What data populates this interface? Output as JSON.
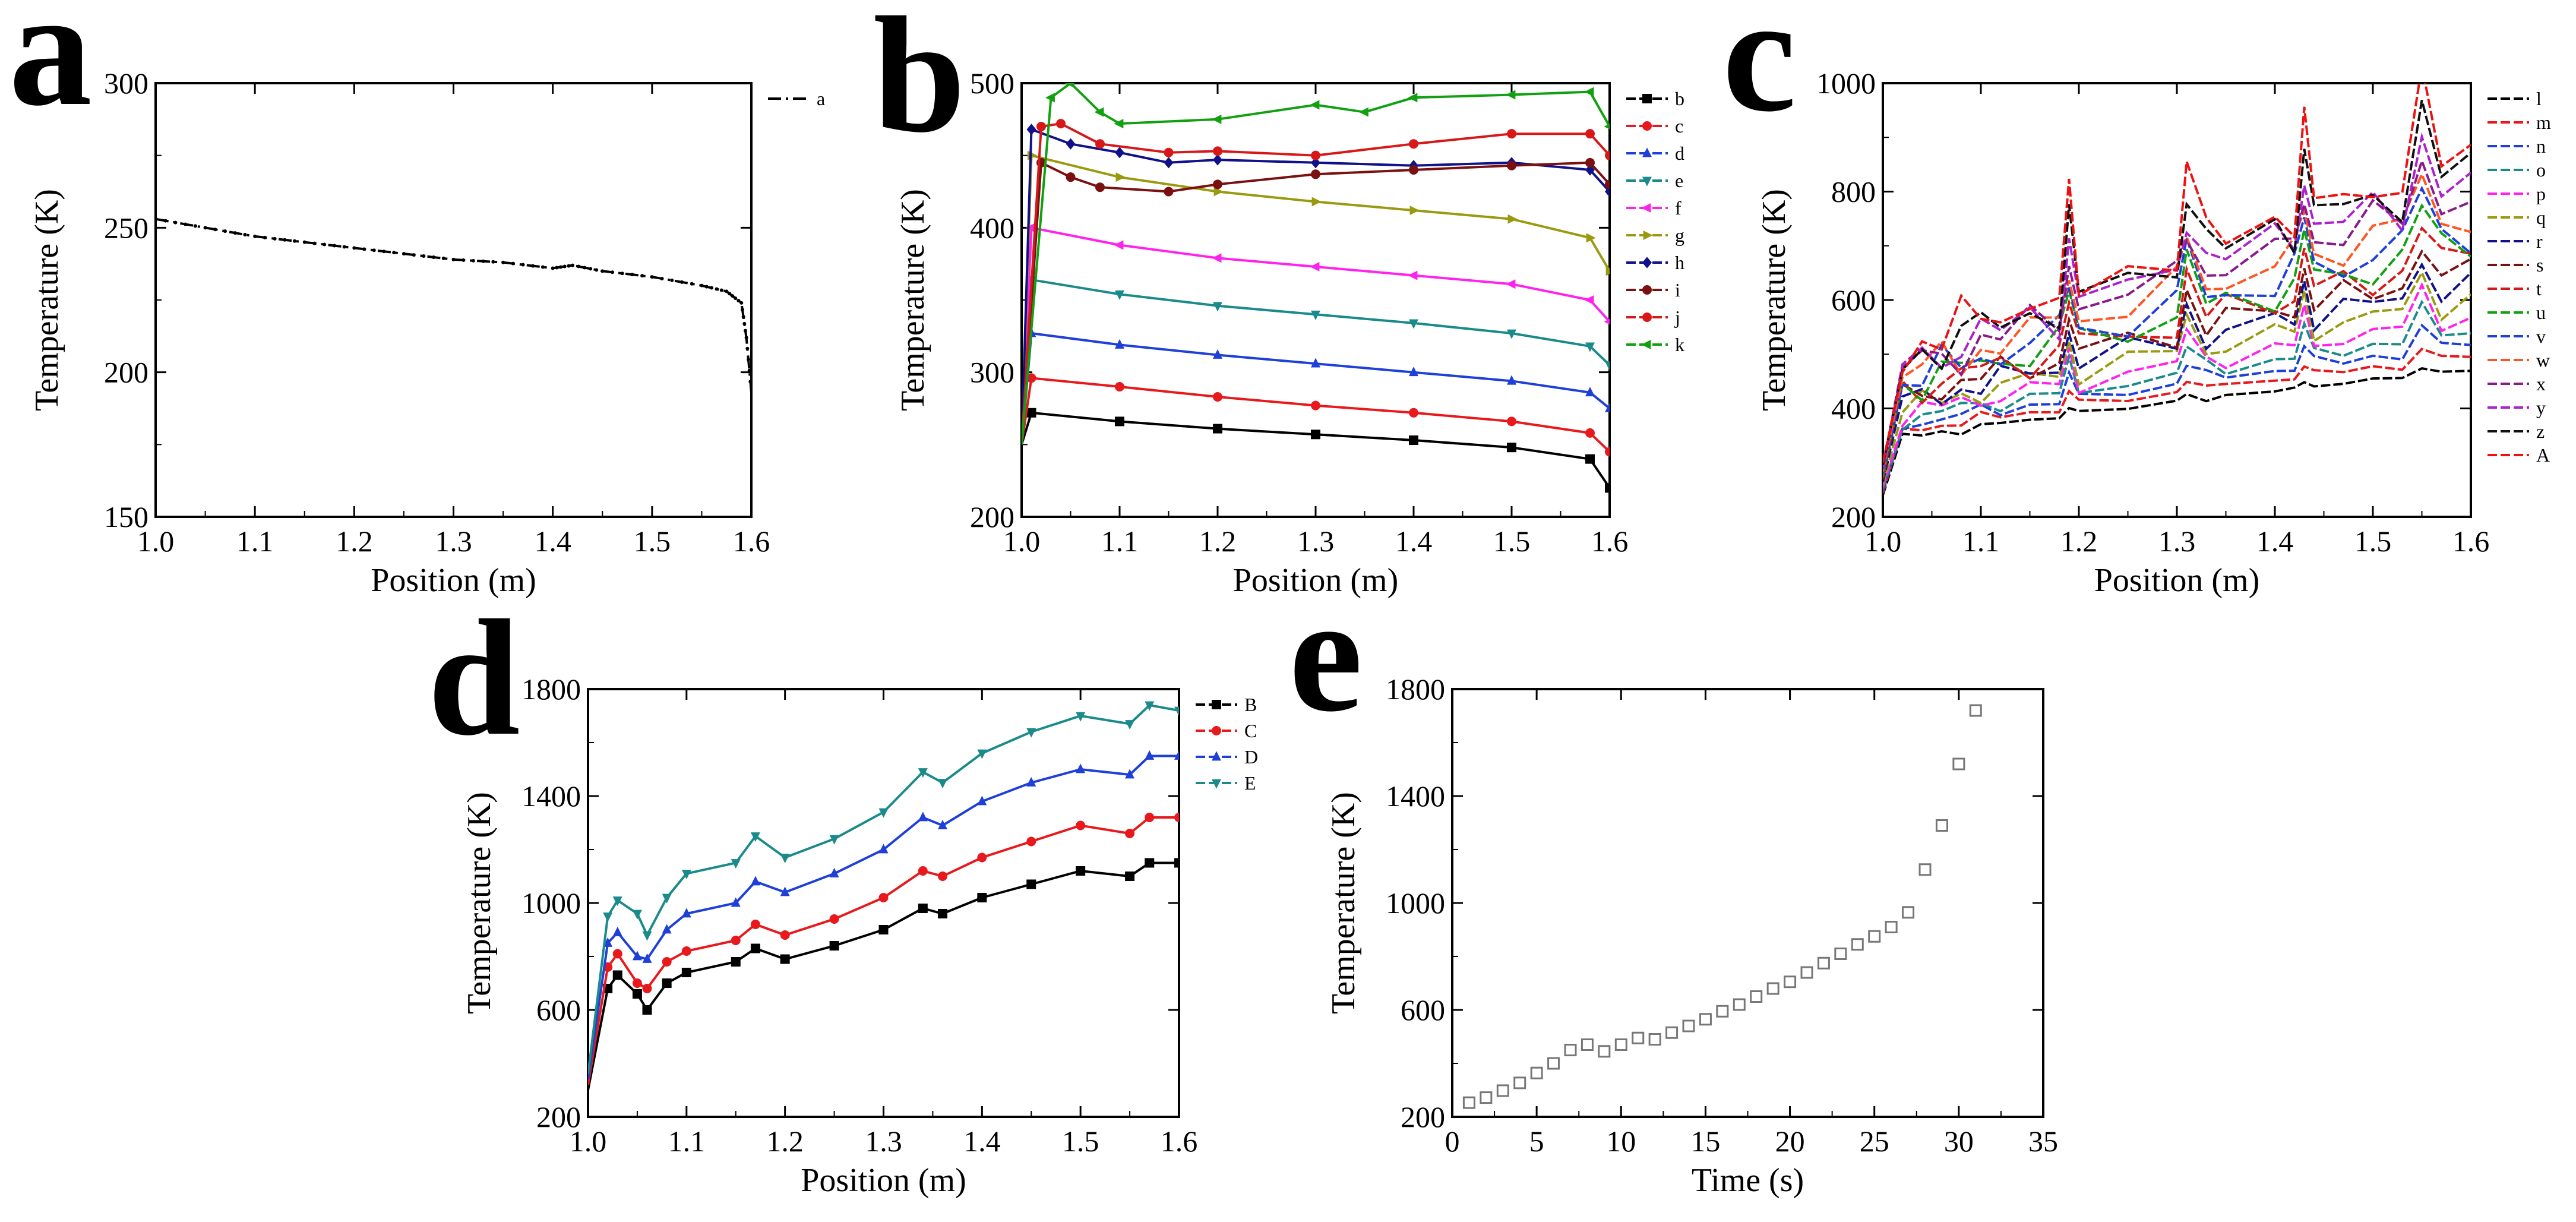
{
  "chart_data": [
    {
      "panel": "a",
      "type": "line",
      "xlabel": "Position (m)",
      "ylabel": "Temperature (K)",
      "xlim": [
        1.0,
        1.6
      ],
      "ylim": [
        150,
        300
      ],
      "xticks": [
        "1.0",
        "1.1",
        "1.2",
        "1.3",
        "1.4",
        "1.5",
        "1.6"
      ],
      "yticks": [
        "150",
        "200",
        "250",
        "300"
      ],
      "legend": "top-right",
      "series": [
        {
          "name": "a",
          "color": "#000000",
          "dash": "dashdot",
          "marker": "dot",
          "x": [
            1.0,
            1.05,
            1.1,
            1.15,
            1.2,
            1.25,
            1.3,
            1.35,
            1.4,
            1.42,
            1.45,
            1.5,
            1.55,
            1.575,
            1.59,
            1.595,
            1.6
          ],
          "y": [
            253,
            250,
            247,
            245,
            243,
            241,
            239,
            238,
            236,
            237,
            235,
            233,
            230,
            228,
            224,
            212,
            193
          ]
        }
      ]
    },
    {
      "panel": "b",
      "type": "line",
      "xlabel": "Position (m)",
      "ylabel": "Temperature (K)",
      "xlim": [
        1.0,
        1.6
      ],
      "ylim": [
        200,
        500
      ],
      "xticks": [
        "1.0",
        "1.1",
        "1.2",
        "1.3",
        "1.4",
        "1.5",
        "1.6"
      ],
      "yticks": [
        "200",
        "300",
        "400",
        "500"
      ],
      "legend": "top-right",
      "series": [
        {
          "name": "b",
          "color": "#000000",
          "marker": "square",
          "x": [
            1.0,
            1.01,
            1.1,
            1.2,
            1.3,
            1.4,
            1.5,
            1.58,
            1.6
          ],
          "y": [
            250,
            272,
            266,
            261,
            257,
            253,
            248,
            240,
            220
          ]
        },
        {
          "name": "c",
          "color": "#e8191c",
          "marker": "circle",
          "x": [
            1.0,
            1.01,
            1.1,
            1.2,
            1.3,
            1.4,
            1.5,
            1.58,
            1.6
          ],
          "y": [
            250,
            296,
            290,
            283,
            277,
            272,
            266,
            258,
            245
          ]
        },
        {
          "name": "d",
          "color": "#1e3fd8",
          "marker": "triangle",
          "x": [
            1.0,
            1.01,
            1.1,
            1.2,
            1.3,
            1.4,
            1.5,
            1.58,
            1.6
          ],
          "y": [
            250,
            327,
            319,
            312,
            306,
            300,
            294,
            286,
            275
          ]
        },
        {
          "name": "e",
          "color": "#1a8a8a",
          "marker": "triangle-down",
          "x": [
            1.0,
            1.01,
            1.1,
            1.2,
            1.3,
            1.4,
            1.5,
            1.58,
            1.6
          ],
          "y": [
            250,
            364,
            354,
            346,
            340,
            334,
            327,
            318,
            305
          ]
        },
        {
          "name": "f",
          "color": "#ff22ee",
          "marker": "triangle-left",
          "x": [
            1.0,
            1.01,
            1.1,
            1.2,
            1.3,
            1.4,
            1.5,
            1.58,
            1.6
          ],
          "y": [
            250,
            400,
            388,
            379,
            373,
            367,
            361,
            350,
            335
          ]
        },
        {
          "name": "g",
          "color": "#9a9a10",
          "marker": "triangle-right",
          "x": [
            1.0,
            1.01,
            1.1,
            1.2,
            1.3,
            1.4,
            1.5,
            1.58,
            1.6
          ],
          "y": [
            250,
            450,
            435,
            425,
            418,
            412,
            406,
            393,
            370
          ]
        },
        {
          "name": "h",
          "color": "#10108a",
          "marker": "diamond",
          "x": [
            1.0,
            1.01,
            1.05,
            1.1,
            1.15,
            1.2,
            1.3,
            1.4,
            1.5,
            1.58,
            1.6
          ],
          "y": [
            250,
            468,
            458,
            452,
            445,
            447,
            445,
            443,
            445,
            440,
            425
          ]
        },
        {
          "name": "i",
          "color": "#7a1010",
          "marker": "hexagon",
          "x": [
            1.0,
            1.02,
            1.05,
            1.08,
            1.15,
            1.2,
            1.3,
            1.4,
            1.5,
            1.58,
            1.6
          ],
          "y": [
            250,
            445,
            435,
            428,
            425,
            430,
            437,
            440,
            443,
            445,
            430
          ]
        },
        {
          "name": "j",
          "color": "#d81818",
          "marker": "circle",
          "x": [
            1.0,
            1.02,
            1.04,
            1.08,
            1.15,
            1.2,
            1.3,
            1.4,
            1.5,
            1.58,
            1.6
          ],
          "y": [
            250,
            470,
            472,
            458,
            452,
            453,
            450,
            458,
            465,
            465,
            450
          ]
        },
        {
          "name": "k",
          "color": "#10a010",
          "marker": "triangle-left",
          "x": [
            1.0,
            1.03,
            1.05,
            1.08,
            1.1,
            1.2,
            1.3,
            1.35,
            1.4,
            1.5,
            1.58,
            1.6
          ],
          "y": [
            250,
            490,
            500,
            480,
            472,
            475,
            485,
            480,
            490,
            492,
            494,
            470
          ]
        }
      ]
    },
    {
      "panel": "c",
      "type": "line",
      "xlabel": "Position (m)",
      "ylabel": "Temperature (K)",
      "xlim": [
        1.0,
        1.6
      ],
      "ylim": [
        200,
        1000
      ],
      "xticks": [
        "1.0",
        "1.1",
        "1.2",
        "1.3",
        "1.4",
        "1.5",
        "1.6"
      ],
      "yticks": [
        "200",
        "400",
        "600",
        "800",
        "1000"
      ],
      "legend": "right",
      "x": [
        1.0,
        1.02,
        1.04,
        1.06,
        1.08,
        1.1,
        1.12,
        1.15,
        1.18,
        1.19,
        1.2,
        1.25,
        1.3,
        1.31,
        1.33,
        1.35,
        1.4,
        1.42,
        1.43,
        1.44,
        1.47,
        1.5,
        1.53,
        1.55,
        1.57,
        1.6
      ],
      "series": [
        {
          "name": "l",
          "color": "#000000",
          "base": 340,
          "top": 470
        },
        {
          "name": "m",
          "color": "#e8191c",
          "base": 352,
          "top": 495
        },
        {
          "name": "n",
          "color": "#1e3fd8",
          "base": 362,
          "top": 520
        },
        {
          "name": "o",
          "color": "#1a8a8a",
          "base": 372,
          "top": 545
        },
        {
          "name": "p",
          "color": "#ff22ee",
          "base": 380,
          "top": 570
        },
        {
          "name": "q",
          "color": "#9a9a10",
          "base": 390,
          "top": 600
        },
        {
          "name": "r",
          "color": "#10108a",
          "base": 398,
          "top": 625
        },
        {
          "name": "s",
          "color": "#7a1010",
          "base": 408,
          "top": 650
        },
        {
          "name": "t",
          "color": "#d81818",
          "base": 418,
          "top": 680
        },
        {
          "name": "u",
          "color": "#10a010",
          "base": 428,
          "top": 705
        },
        {
          "name": "v",
          "color": "#1e3fd8",
          "base": 436,
          "top": 730
        },
        {
          "name": "w",
          "color": "#ff5522",
          "base": 446,
          "top": 760
        },
        {
          "name": "x",
          "color": "#8a1a8a",
          "base": 454,
          "top": 785
        },
        {
          "name": "y",
          "color": "#aa22cc",
          "base": 462,
          "top": 810
        },
        {
          "name": "z",
          "color": "#101010",
          "base": 472,
          "top": 840
        },
        {
          "name": "A",
          "color": "#ee1111",
          "base": 490,
          "top": 870
        }
      ]
    },
    {
      "panel": "d",
      "type": "line",
      "xlabel": "Position (m)",
      "ylabel": "Temperature (K)",
      "xlim": [
        1.0,
        1.6
      ],
      "ylim": [
        200,
        1800
      ],
      "xticks": [
        "1.0",
        "1.1",
        "1.2",
        "1.3",
        "1.4",
        "1.5",
        "1.6"
      ],
      "yticks": [
        "200",
        "600",
        "1000",
        "1400",
        "1800"
      ],
      "legend": "top-right",
      "series": [
        {
          "name": "B",
          "color": "#000000",
          "marker": "square",
          "x": [
            1.0,
            1.02,
            1.03,
            1.05,
            1.06,
            1.08,
            1.1,
            1.15,
            1.17,
            1.2,
            1.25,
            1.3,
            1.34,
            1.36,
            1.4,
            1.45,
            1.5,
            1.55,
            1.57,
            1.6
          ],
          "y": [
            300,
            680,
            730,
            660,
            600,
            700,
            740,
            780,
            830,
            790,
            840,
            900,
            980,
            960,
            1020,
            1070,
            1120,
            1100,
            1150,
            1150
          ]
        },
        {
          "name": "C",
          "color": "#e8191c",
          "marker": "circle",
          "x": [
            1.0,
            1.02,
            1.03,
            1.05,
            1.06,
            1.08,
            1.1,
            1.15,
            1.17,
            1.2,
            1.25,
            1.3,
            1.34,
            1.36,
            1.4,
            1.45,
            1.5,
            1.55,
            1.57,
            1.6
          ],
          "y": [
            320,
            760,
            810,
            700,
            680,
            780,
            820,
            860,
            920,
            880,
            940,
            1020,
            1120,
            1100,
            1170,
            1230,
            1290,
            1260,
            1320,
            1320
          ]
        },
        {
          "name": "D",
          "color": "#1e3fd8",
          "marker": "triangle",
          "x": [
            1.0,
            1.02,
            1.03,
            1.05,
            1.06,
            1.08,
            1.1,
            1.15,
            1.17,
            1.2,
            1.25,
            1.3,
            1.34,
            1.36,
            1.4,
            1.45,
            1.5,
            1.55,
            1.57,
            1.6
          ],
          "y": [
            340,
            850,
            890,
            800,
            790,
            900,
            960,
            1000,
            1080,
            1040,
            1110,
            1200,
            1320,
            1290,
            1380,
            1450,
            1500,
            1480,
            1550,
            1550
          ]
        },
        {
          "name": "E",
          "color": "#1a8a8a",
          "marker": "triangle-down",
          "x": [
            1.0,
            1.02,
            1.03,
            1.05,
            1.06,
            1.08,
            1.1,
            1.15,
            1.17,
            1.2,
            1.25,
            1.3,
            1.34,
            1.36,
            1.4,
            1.45,
            1.5,
            1.55,
            1.57,
            1.6
          ],
          "y": [
            360,
            950,
            1010,
            960,
            880,
            1020,
            1110,
            1150,
            1250,
            1170,
            1240,
            1340,
            1490,
            1450,
            1560,
            1640,
            1700,
            1670,
            1740,
            1720
          ]
        }
      ]
    },
    {
      "panel": "e",
      "type": "scatter",
      "xlabel": "Time (s)",
      "ylabel": "Temperature (K)",
      "xlim": [
        0,
        35
      ],
      "ylim": [
        200,
        1800
      ],
      "xticks": [
        "0",
        "5",
        "10",
        "15",
        "20",
        "25",
        "30",
        "35"
      ],
      "yticks": [
        "200",
        "600",
        "1000",
        "1400",
        "1800"
      ],
      "marker": "open-square",
      "x": [
        1,
        2,
        3,
        4,
        5,
        6,
        7,
        8,
        9,
        10,
        11,
        12,
        13,
        14,
        15,
        16,
        17,
        18,
        19,
        20,
        21,
        22,
        23,
        24,
        25,
        26,
        27,
        28,
        29,
        30,
        31
      ],
      "y": [
        253,
        272,
        298,
        327,
        364,
        400,
        450,
        470,
        445,
        470,
        495,
        490,
        515,
        540,
        565,
        595,
        620,
        650,
        680,
        705,
        740,
        775,
        810,
        845,
        875,
        910,
        965,
        1125,
        1290,
        1520,
        1720
      ]
    }
  ]
}
